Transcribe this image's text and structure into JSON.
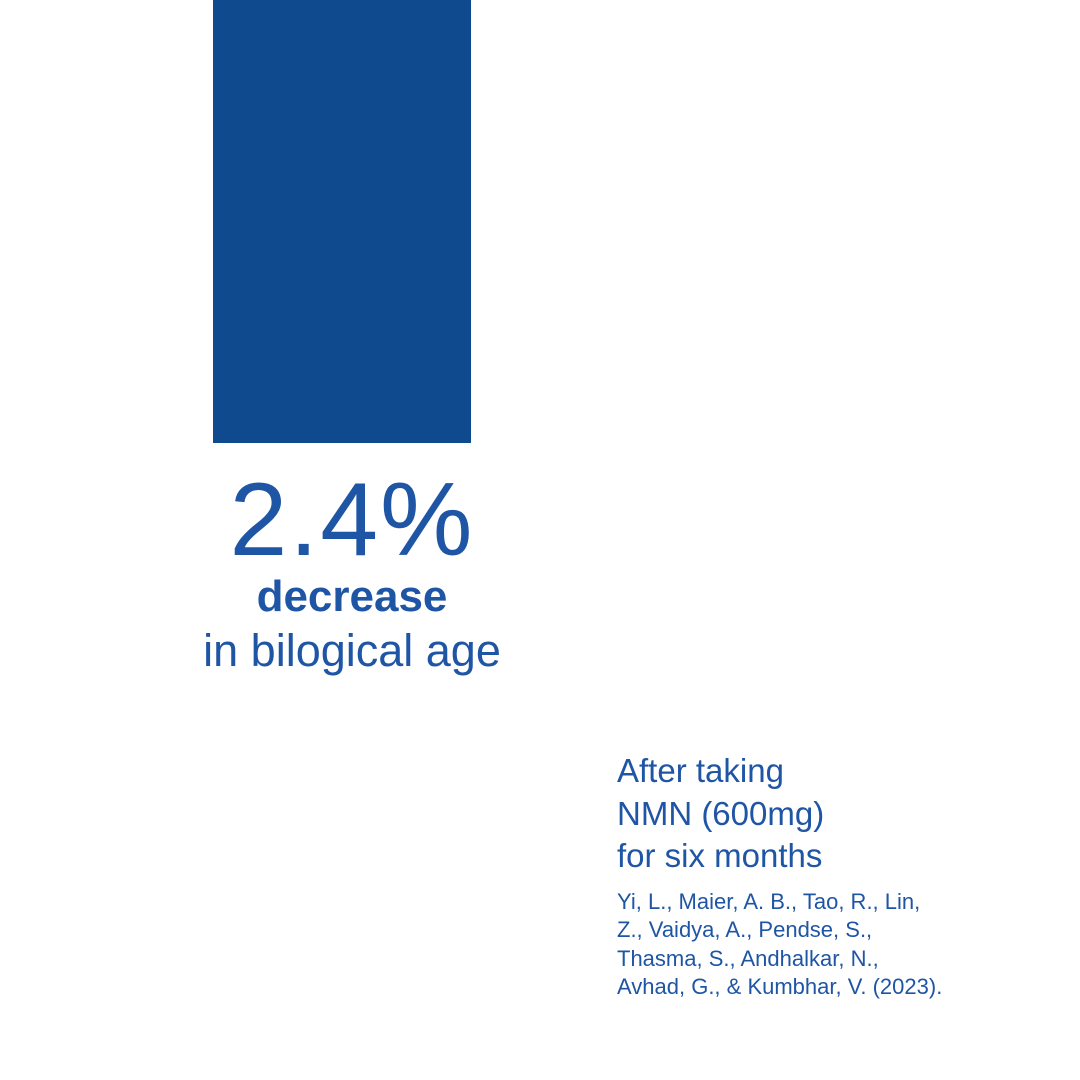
{
  "headline": {
    "value": "2.4%",
    "emphasis": "decrease",
    "caption": "in bilogical age"
  },
  "note": {
    "lines": [
      "After taking",
      "NMN (600mg)",
      "for six months"
    ]
  },
  "citation": {
    "lines": [
      "Yi, L., Maier, A. B., Tao, R., Lin,",
      "Z., Vaidya, A., Pendse, S.,",
      "Thasma, S., Andhalkar, N.,",
      "Avhad, G., & Kumbhar, V. (2023)."
    ]
  }
}
